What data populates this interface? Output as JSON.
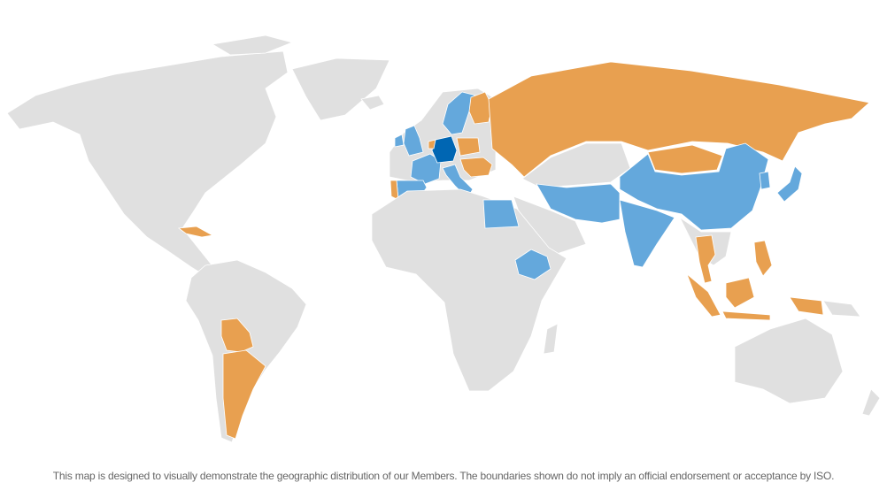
{
  "map": {
    "colors": {
      "land": "#e0e0e0",
      "member_light_blue": "#64a8dc",
      "member_orange": "#e8a050",
      "member_dark_blue": "#0066b3",
      "background": "#ffffff"
    }
  },
  "caption": "This map is designed to visually demonstrate the geographic distribution of our Members. The boundaries shown do not imply an official endorsement or acceptance by ISO."
}
